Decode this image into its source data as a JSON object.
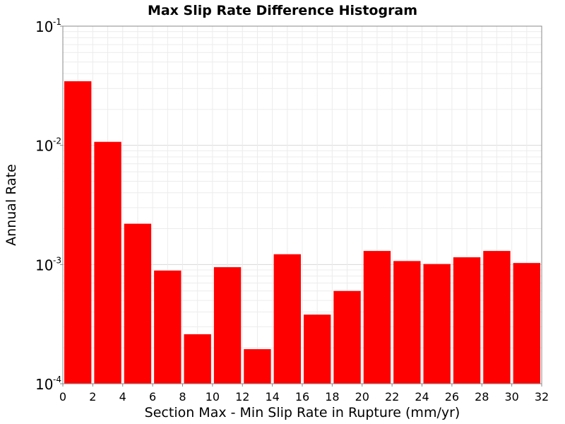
{
  "chart_data": {
    "type": "bar",
    "title": "Max Slip Rate Difference Histogram",
    "xlabel": "Section Max - Min Slip Rate in Rupture (mm/yr)",
    "ylabel": "Annual Rate",
    "xlim": [
      0,
      32
    ],
    "ylim": [
      0.0001,
      0.1
    ],
    "y_scale": "log",
    "x_ticks": [
      "0",
      "2",
      "4",
      "6",
      "8",
      "10",
      "12",
      "14",
      "16",
      "18",
      "20",
      "22",
      "24",
      "26",
      "28",
      "30",
      "32"
    ],
    "y_ticks": [
      {
        "base": "10",
        "exp": "-1",
        "value": 0.1
      },
      {
        "base": "10",
        "exp": "-2",
        "value": 0.01
      },
      {
        "base": "10",
        "exp": "-3",
        "value": 0.001
      },
      {
        "base": "10",
        "exp": "-4",
        "value": 0.0001
      }
    ],
    "bin_width": 2,
    "bars": [
      {
        "x_start": 0,
        "value": 0.0345
      },
      {
        "x_start": 2,
        "value": 0.0107
      },
      {
        "x_start": 4,
        "value": 0.0022
      },
      {
        "x_start": 6,
        "value": 0.00089
      },
      {
        "x_start": 8,
        "value": 0.00026
      },
      {
        "x_start": 10,
        "value": 0.00095
      },
      {
        "x_start": 12,
        "value": 0.000195
      },
      {
        "x_start": 14,
        "value": 0.00122
      },
      {
        "x_start": 16,
        "value": 0.00038
      },
      {
        "x_start": 18,
        "value": 0.0006
      },
      {
        "x_start": 20,
        "value": 0.0013
      },
      {
        "x_start": 22,
        "value": 0.00107
      },
      {
        "x_start": 24,
        "value": 0.00101
      },
      {
        "x_start": 26,
        "value": 0.00115
      },
      {
        "x_start": 28,
        "value": 0.0013
      },
      {
        "x_start": 30,
        "value": 0.00103
      }
    ],
    "bar_color": "#ff0000",
    "grid": true
  }
}
